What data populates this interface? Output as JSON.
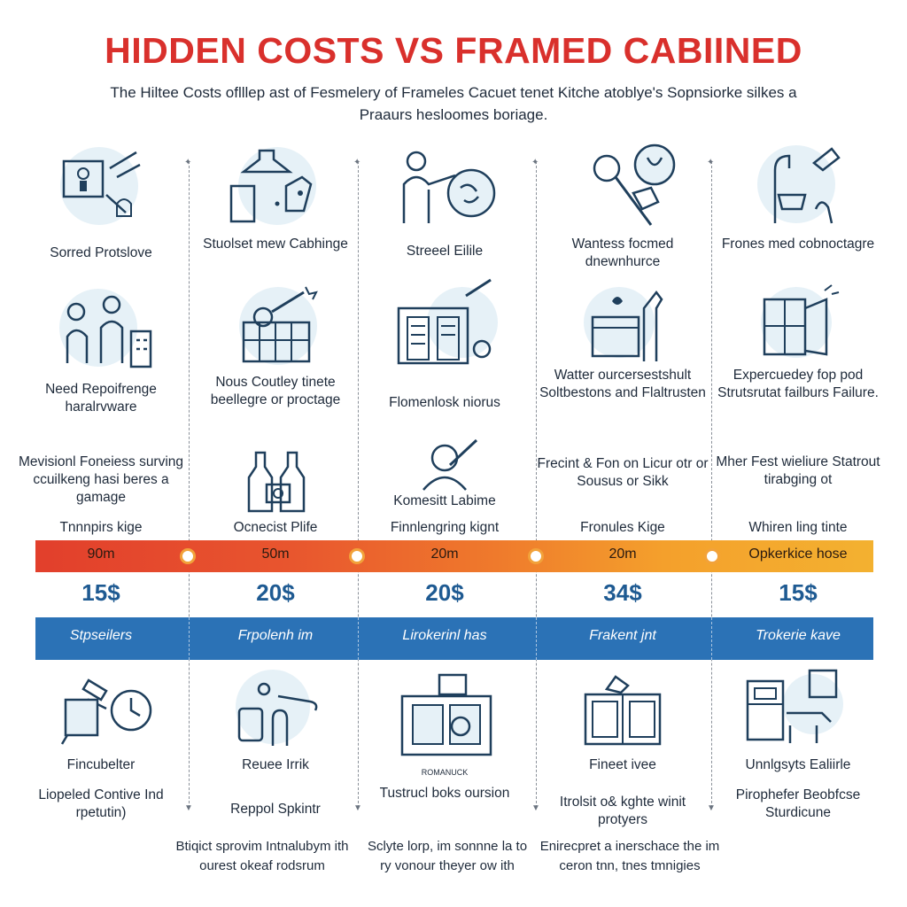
{
  "title": "HIDDEN COSTS VS FRAMED CABIINED",
  "subtitle": "The Hiltee Costs oflllep ast of Fesmelery of Frameles Cacuet tenet Kitche atoblye's Sopnsiorke silkes a Praaurs hesloomes boriage.",
  "columns": [
    {
      "row1_label": "Sorred Protslove",
      "row2_label": "Need Repoifrenge haralrvware",
      "row3_label": "Mevisionl Foneiess surving ccuilkeng hasi beres a gamage",
      "band_heading": "Tnnnpirs kige",
      "band_value": "90m",
      "number": "15$",
      "blue_label": "Stpseilers",
      "row4_label": "Fincubelter",
      "row5_label": "Liopeled Contive Ind rpetutin)"
    },
    {
      "row1_label": "Stuolset mew Cabhinge",
      "row2_label": "Nous Coutley tinete beellegre or proctage",
      "row3_label": "",
      "band_heading": "Ocnecist Plife",
      "band_value": "50m",
      "number": "20$",
      "blue_label": "Frpolenh im",
      "row4_label": "Reuee Irrik",
      "row5_label": "Reppol Spkintr"
    },
    {
      "row1_label": "Streeel Eilile",
      "row2_label": "Flomenlosk niorus",
      "row3_label": "Komesitt Labime",
      "band_heading": "Finnlengring kignt",
      "band_value": "20m",
      "number": "20$",
      "blue_label": "Lirokerinl has",
      "row4_label": "ROMANUCK",
      "row5_label": "Tustrucl boks oursion"
    },
    {
      "row1_label": "Wantess focmed dnewnhurce",
      "row2_label": "Watter ourcersestshult Soltbestons and Flaltrusten",
      "row3_label": "Frecint & Fon on Licur otr or Sousus or Sikk",
      "band_heading": "Fronules Kige",
      "band_value": "20m",
      "number": "34$",
      "blue_label": "Frakent jnt",
      "row4_label": "Fineet ivee",
      "row5_label": "Itrolsit o& kghte winit protyers"
    },
    {
      "row1_label": "Frones med cobnoctagre",
      "row2_label": "Expercuedey fop pod Strutsrutat failburs Failure.",
      "row3_label": "Mher Fest wieliure Statrout tirabging ot",
      "band_heading": "Whiren ling tinte",
      "band_value": "Opkerkice hose",
      "number": "15$",
      "blue_label": "Trokerie kave",
      "row4_label": "Unnlgsyts Ealiirle",
      "row5_label": "Pirophefer Beobfcse Sturdicune"
    }
  ],
  "footnotes": [
    "Btiqict sprovim Intnalubym ith ourest okeaf rodsrum",
    "Sclyte lorp, im sonnne la to ry vonour theyer ow ith",
    "Enirecpret a inerschace the im ceron tnn, tnes tmnigies"
  ],
  "icons": [
    "cabinet-diagram-icon",
    "range-hood-icon",
    "person-repair-icon",
    "magnifier-tools-icon",
    "broken-faucet-icon",
    "people-kitchen-icon",
    "cabinet-saw-icon",
    "cabinet-damage-icon",
    "water-damage-icon",
    "door-structure-icon",
    "bottles-icon",
    "person-tool-icon",
    "hardware-clock-icon",
    "hand-tools-icon",
    "kitchen-repair-icon",
    "cabinet-hands-icon",
    "shelf-failure-icon"
  ],
  "colors": {
    "title": "#d9302c",
    "accent_blue": "#2b72b6",
    "number_blue": "#1e5a92",
    "band_start": "#e23f2c",
    "band_end": "#f3b130"
  }
}
